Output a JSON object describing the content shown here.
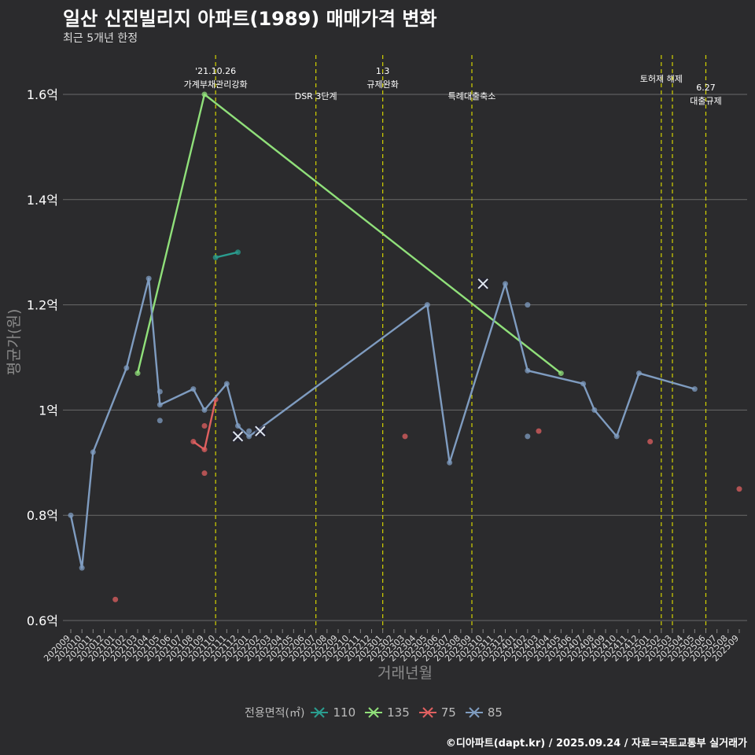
{
  "title": "일산 신진빌리지 아파트(1989) 매매가격 변화",
  "subtitle": "최근 5개년 한정",
  "caption": "©디아파트(dapt.kr) / 2025.09.24 / 자료=국토교통부 실거래가",
  "chart_data": {
    "type": "line",
    "xlabel": "거래년월",
    "ylabel": "평균가(원)",
    "ylim": [
      0.6,
      1.65
    ],
    "y_ticks": [
      {
        "value": 0.6,
        "label": "0.6억"
      },
      {
        "value": 0.8,
        "label": "0.8억"
      },
      {
        "value": 1.0,
        "label": "1억"
      },
      {
        "value": 1.2,
        "label": "1.2억"
      },
      {
        "value": 1.4,
        "label": "1.4억"
      },
      {
        "value": 1.6,
        "label": "1.6억"
      }
    ],
    "categories": [
      "202009",
      "202010",
      "202011",
      "202012",
      "202101",
      "202102",
      "202103",
      "202104",
      "202105",
      "202106",
      "202107",
      "202108",
      "202109",
      "202110",
      "202111",
      "202112",
      "202201",
      "202202",
      "202203",
      "202204",
      "202205",
      "202206",
      "202207",
      "202208",
      "202209",
      "202210",
      "202211",
      "202212",
      "202301",
      "202302",
      "202303",
      "202304",
      "202305",
      "202306",
      "202307",
      "202308",
      "202309",
      "202310",
      "202311",
      "202312",
      "202401",
      "202402",
      "202403",
      "202404",
      "202405",
      "202406",
      "202407",
      "202408",
      "202409",
      "202410",
      "202411",
      "202412",
      "202501",
      "202502",
      "202503",
      "202504",
      "202505",
      "202506",
      "202507",
      "202508",
      "202509"
    ],
    "grid": true,
    "legend_title": "전용면적(㎡)",
    "legend_position": "bottom",
    "series": [
      {
        "name": "110",
        "color": "#2a9d8f",
        "line": [
          [
            "202110",
            1.29
          ],
          [
            "202112",
            1.3
          ]
        ],
        "points": [],
        "crosses": []
      },
      {
        "name": "135",
        "color": "#90e07a",
        "line": [
          [
            "202103",
            1.07
          ],
          [
            "202109",
            1.6
          ],
          [
            "202405",
            1.07
          ]
        ],
        "points": [],
        "crosses": []
      },
      {
        "name": "75",
        "color": "#e06060",
        "line": [
          [
            "202108",
            0.94
          ],
          [
            "202109",
            0.925
          ],
          [
            "202110",
            1.02
          ]
        ],
        "points": [
          [
            "202101",
            0.64
          ],
          [
            "202109",
            0.97
          ],
          [
            "202109",
            0.88
          ],
          [
            "202303",
            0.95
          ],
          [
            "202403",
            0.96
          ],
          [
            "202501",
            0.94
          ],
          [
            "202509",
            0.85
          ]
        ],
        "crosses": []
      },
      {
        "name": "85",
        "color": "#7f9cc0",
        "line": [
          [
            "202009",
            0.8
          ],
          [
            "202010",
            0.7
          ],
          [
            "202011",
            0.92
          ],
          [
            "202102",
            1.08
          ],
          [
            "202104",
            1.25
          ],
          [
            "202105",
            1.01
          ],
          [
            "202108",
            1.04
          ],
          [
            "202109",
            1.0
          ],
          [
            "202111",
            1.05
          ],
          [
            "202112",
            0.97
          ],
          [
            "202201",
            0.95
          ],
          [
            "202305",
            1.2
          ],
          [
            "202307",
            0.9
          ],
          [
            "202312",
            1.24
          ],
          [
            "202402",
            1.075
          ],
          [
            "202407",
            1.05
          ],
          [
            "202408",
            1.0
          ],
          [
            "202410",
            0.95
          ],
          [
            "202412",
            1.07
          ],
          [
            "202505",
            1.04
          ]
        ],
        "points": [
          [
            "202105",
            1.035
          ],
          [
            "202105",
            0.98
          ],
          [
            "202201",
            0.96
          ],
          [
            "202402",
            1.2
          ],
          [
            "202402",
            0.95
          ]
        ],
        "crosses": [
          [
            "202112",
            0.95
          ],
          [
            "202202",
            0.96
          ],
          [
            "202310",
            1.24
          ]
        ]
      }
    ],
    "events": [
      {
        "x": "202110",
        "lines": [
          "'21.10.26",
          "가계부채관리강화"
        ],
        "y": 1.6
      },
      {
        "x": "202207",
        "lines": [
          "DSR 3단계"
        ],
        "y": 1.6
      },
      {
        "x": "202301",
        "lines": [
          "1.3",
          "규제완화"
        ],
        "y": 1.6
      },
      {
        "x": "202309",
        "lines": [
          "특례대출축소"
        ],
        "y": 1.6
      },
      {
        "x": "202502",
        "lines": [
          "토허제 해제"
        ],
        "y": 1.6
      },
      {
        "x": "202503",
        "lines": [],
        "y": 1.6
      },
      {
        "x": "202506",
        "lines": [
          "6.27",
          "대출규제"
        ],
        "y": 1.6
      }
    ]
  }
}
